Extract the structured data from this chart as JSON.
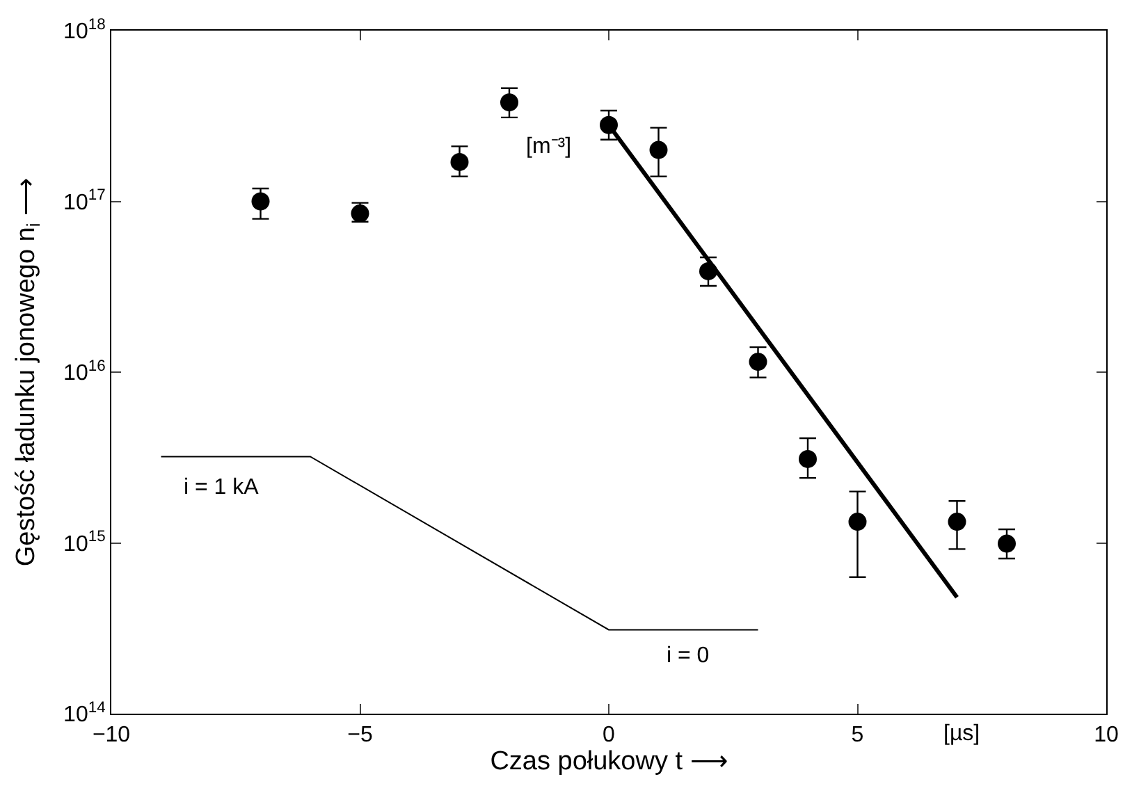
{
  "chart_data": {
    "type": "scatter",
    "xlabel": "Czas połukowy t ⟶",
    "ylabel": "Gęstość ładunku jonowego n$_{i}$ ⟶",
    "log": "y",
    "legend": false,
    "marker": "circle",
    "xlim": [
      -10,
      10
    ],
    "xticks": [
      {
        "value": -10,
        "label": "−10"
      },
      {
        "value": -5,
        "label": "−5"
      },
      0,
      5,
      10
    ],
    "ylim": [
      100000000000000.0,
      1e+18
    ],
    "yticks": [
      {
        "value": 100000000000000.0,
        "label": "10$^{14}$"
      },
      {
        "value": 1000000000000000.0,
        "label": "10$^{15}$"
      },
      {
        "value": 1e+16,
        "label": "10$^{16}$"
      },
      {
        "value": 1e+17,
        "label": "10$^{17}$"
      },
      {
        "value": 1e+18,
        "label": "10$^{18}$"
      }
    ],
    "series": [
      {
        "color": "#000000",
        "x": [
          -7,
          -5,
          -3,
          -2,
          0,
          1,
          2,
          3,
          4,
          5,
          7,
          8
        ],
        "values": [
          1e+17,
          8.5e+16,
          1.7e+17,
          3.8e+17,
          2.8e+17,
          2e+17,
          3.9e+16,
          1.15e+16,
          3100000000000000.0,
          1330000000000000.0,
          1330000000000000.0,
          990000000000000.0
        ],
        "errors": [
          [
            7.9e+16,
            1.19e+17
          ],
          [
            7.6e+16,
            9.8e+16
          ],
          [
            1.4e+17,
            2.1e+17
          ],
          [
            3.1e+17,
            4.6e+17
          ],
          [
            2.3e+17,
            3.4e+17
          ],
          [
            1.4e+17,
            2.7e+17
          ],
          [
            3.2e+16,
            4.7e+16
          ],
          [
            9300000000000000.0,
            1.4e+16
          ],
          [
            2400000000000000.0,
            4100000000000000.0
          ],
          [
            630000000000000.0,
            2000000000000000.0
          ],
          [
            920000000000000.0,
            1760000000000000.0
          ],
          [
            810000000000000.0,
            1200000000000000.0
          ]
        ]
      },
      {
        "type": "line",
        "color": "#000000",
        "marker": "none",
        "line_style": "solid",
        "x": [
          0,
          7
        ],
        "values": [
          2.8e+17,
          480000000000000.0
        ]
      },
      {
        "type": "line",
        "color": "#000000",
        "marker": "none",
        "line_style": "solid",
        "x": [
          -9,
          -6,
          0,
          3
        ],
        "values": [
          3200000000000000.0,
          3200000000000000.0,
          310000000000000.0,
          310000000000000.0
        ]
      }
    ],
    "annotations": [
      "[m⁻³]",
      "i = 1 kA",
      "i = 0",
      "[µs]"
    ]
  }
}
